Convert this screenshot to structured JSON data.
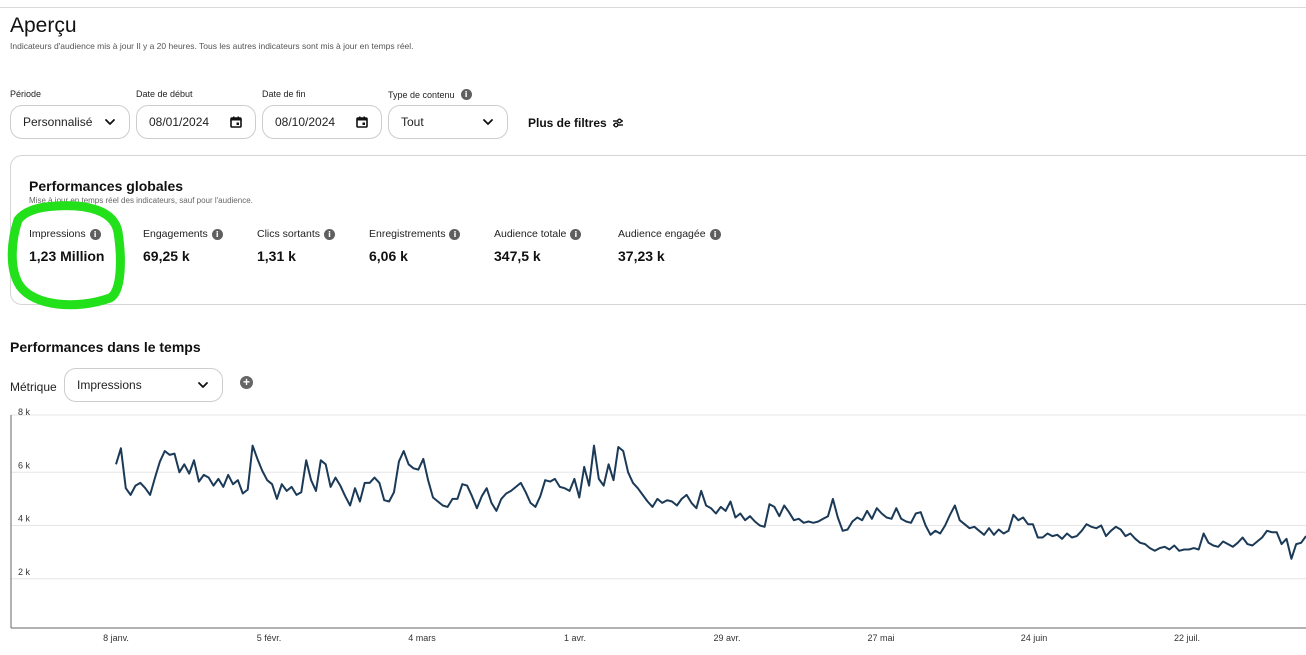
{
  "page": {
    "title": "Aperçu",
    "subtitle": "Indicateurs d'audience mis à jour Il y a 20 heures. Tous les autres indicateurs sont mis à jour en temps réel."
  },
  "filters": {
    "period": {
      "label": "Période",
      "value": "Personnalisé"
    },
    "start_date": {
      "label": "Date de début",
      "value": "08/01/2024"
    },
    "end_date": {
      "label": "Date de fin",
      "value": "08/10/2024"
    },
    "content_type": {
      "label": "Type de contenu",
      "value": "Tout"
    },
    "more_filters": "Plus de filtres"
  },
  "overview": {
    "title": "Performances globales",
    "subtitle": "Mise à jour en temps réel des indicateurs, sauf pour l'audience.",
    "metrics": [
      {
        "label": "Impressions",
        "value": "1,23 Million"
      },
      {
        "label": "Engagements",
        "value": "69,25 k"
      },
      {
        "label": "Clics sortants",
        "value": "1,31 k"
      },
      {
        "label": "Enregistrements",
        "value": "6,06 k"
      },
      {
        "label": "Audience totale",
        "value": "347,5 k"
      },
      {
        "label": "Audience engagée",
        "value": "37,23 k"
      }
    ],
    "highlight_color": "#22e01a"
  },
  "timeline": {
    "title": "Performances dans le temps",
    "metric_label": "Métrique",
    "metric_value": "Impressions"
  },
  "chart_data": {
    "type": "line",
    "series": [
      {
        "name": "Impressions",
        "color": "#1b3a57",
        "values": [
          6300,
          6900,
          5400,
          5150,
          5500,
          5600,
          5400,
          5150,
          5800,
          6400,
          6800,
          6650,
          6700,
          6000,
          6300,
          5950,
          6450,
          5650,
          5900,
          5800,
          5500,
          5750,
          5450,
          5900,
          5550,
          5700,
          5200,
          5350,
          7000,
          6500,
          6050,
          5700,
          5550,
          5000,
          5550,
          5300,
          5450,
          5150,
          5250,
          6450,
          5700,
          5300,
          6450,
          6300,
          5450,
          5800,
          5500,
          5100,
          4750,
          5400,
          4900,
          5600,
          5600,
          5800,
          5600,
          4950,
          4900,
          5250,
          6400,
          6800,
          6300,
          6150,
          6100,
          6500,
          5700,
          5050,
          4900,
          4750,
          4700,
          5000,
          5000,
          5550,
          5500,
          5100,
          4650,
          5100,
          5400,
          4850,
          4550,
          5000,
          5200,
          5300,
          5450,
          5600,
          5250,
          4850,
          4700,
          5100,
          5700,
          5650,
          5750,
          5450,
          5400,
          5300,
          5750,
          5050,
          6200,
          5500,
          7000,
          5750,
          5500,
          6300,
          5700,
          6950,
          6800,
          6000,
          5600,
          5400,
          5150,
          4900,
          4700,
          5000,
          4850,
          4950,
          4900,
          4750,
          5000,
          5150,
          4850,
          4650,
          5300,
          4750,
          4650,
          4450,
          4700,
          4550,
          4900,
          4300,
          4450,
          4200,
          4350,
          4150,
          4000,
          3950,
          4800,
          4700,
          4350,
          4750,
          4500,
          4200,
          4250,
          4100,
          4150,
          4100,
          4150,
          4250,
          4350,
          5000,
          4300,
          3800,
          3850,
          4150,
          4300,
          4200,
          4550,
          4250,
          4650,
          4450,
          4300,
          4250,
          4650,
          4250,
          4150,
          4100,
          4450,
          4500,
          4000,
          3650,
          3800,
          3700,
          4000,
          4400,
          4750,
          4200,
          4050,
          3900,
          3950,
          3800,
          3650,
          3900,
          3650,
          3850,
          3700,
          3800,
          4400,
          4200,
          4300,
          4050,
          4050,
          3550,
          3550,
          3700,
          3600,
          3650,
          3500,
          3700,
          3550,
          3600,
          3800,
          4050,
          3950,
          3900,
          4000,
          3600,
          3800,
          3950,
          3850,
          3600,
          3700,
          3500,
          3350,
          3300,
          3150,
          3050,
          3150,
          3200,
          3100,
          3250,
          3050,
          3100,
          3100,
          3150,
          3100,
          3700,
          3350,
          3250,
          3200,
          3400,
          3300,
          3200,
          3350,
          3550,
          3300,
          3250,
          3400,
          3550,
          3800,
          3750,
          3750,
          3300,
          3500,
          2750,
          3300,
          3350,
          3600
        ]
      }
    ],
    "x_ticks": [
      "8 janv.",
      "5 févr.",
      "4 mars",
      "1 avr.",
      "29 avr.",
      "27 mai",
      "24 juin",
      "22 juil."
    ],
    "y_ticks": [
      "2 k",
      "4 k",
      "6 k",
      "8 k"
    ],
    "ylim": [
      0,
      8000
    ]
  }
}
